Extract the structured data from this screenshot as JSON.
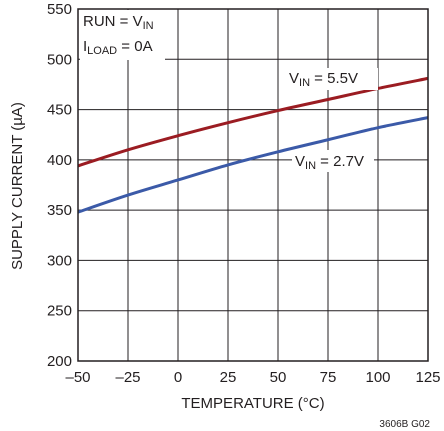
{
  "chart_data": {
    "type": "line",
    "xlabel": "TEMPERATURE (°C)",
    "ylabel": "SUPPLY CURRENT (µA)",
    "xlim": [
      -50,
      125
    ],
    "ylim": [
      200,
      550
    ],
    "xticks": [
      -50,
      -25,
      0,
      25,
      50,
      75,
      100,
      125
    ],
    "yticks": [
      200,
      250,
      300,
      350,
      400,
      450,
      500,
      550
    ],
    "xtick_labels": [
      "–50",
      "–25",
      "0",
      "25",
      "50",
      "75",
      "100",
      "125"
    ],
    "ytick_labels": [
      "200",
      "250",
      "300",
      "350",
      "400",
      "450",
      "500",
      "550"
    ],
    "grid": true,
    "conditions": {
      "line1_main": "RUN = V",
      "line1_sub": "IN",
      "line2_main": "I",
      "line2_sub": "LOAD",
      "line2_rest": " = 0A"
    },
    "figure_id": "3606B G02",
    "series": [
      {
        "name": "VIN = 5.5V",
        "label_main": "V",
        "label_sub": "IN",
        "label_rest": " = 5.5V",
        "color": "#9b1c22",
        "x": [
          -50,
          -25,
          0,
          25,
          50,
          75,
          100,
          125
        ],
        "y": [
          394,
          410,
          424,
          437,
          449,
          460,
          471,
          481
        ]
      },
      {
        "name": "VIN = 2.7V",
        "label_main": "V",
        "label_sub": "IN",
        "label_rest": " = 2.7V",
        "color": "#3b5aa8",
        "x": [
          -50,
          -25,
          0,
          25,
          50,
          75,
          100,
          125
        ],
        "y": [
          348,
          365,
          380,
          395,
          408,
          420,
          432,
          442
        ]
      }
    ]
  }
}
